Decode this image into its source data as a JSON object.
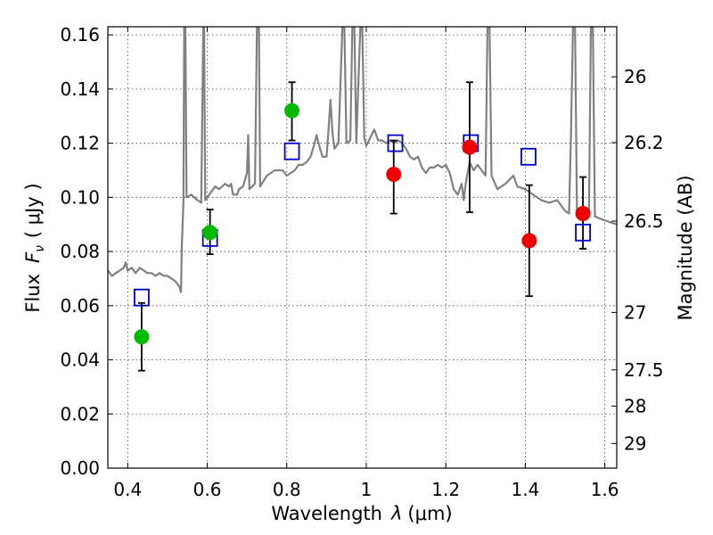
{
  "chart_data": {
    "type": "scatter",
    "xlabel_prefix": "Wavelength",
    "xlabel_symbol": "λ",
    "xlabel_unit": "(μm)",
    "ylabel_prefix": "Flux",
    "ylabel_symbol": "F",
    "ylabel_sub": "ν",
    "ylabel_unit": "( μJy )",
    "y2label": "Magnitude (AB)",
    "xlim": [
      0.35,
      1.63
    ],
    "ylim": [
      0.0,
      0.163
    ],
    "x_ticks": [
      0.4,
      0.6,
      0.8,
      1.0,
      1.2,
      1.4,
      1.6
    ],
    "x_tick_labels": [
      "0.4",
      "0.6",
      "0.8",
      "1",
      "1.2",
      "1.4",
      "1.6"
    ],
    "y_ticks": [
      0.0,
      0.02,
      0.04,
      0.06,
      0.08,
      0.1,
      0.12,
      0.14,
      0.16
    ],
    "y_tick_labels": [
      "0.00",
      "0.02",
      "0.04",
      "0.06",
      "0.08",
      "0.10",
      "0.12",
      "0.14",
      "0.16"
    ],
    "y2_ticks": [
      {
        "label": "26",
        "flux": 0.1445
      },
      {
        "label": "26.2",
        "flux": 0.1202
      },
      {
        "label": "26.5",
        "flux": 0.0912
      },
      {
        "label": "27",
        "flux": 0.0575
      },
      {
        "label": "27.5",
        "flux": 0.0363
      },
      {
        "label": "28",
        "flux": 0.0229
      },
      {
        "label": "29",
        "flux": 0.0091
      }
    ],
    "colors": {
      "spectrum": "#808080",
      "model": "#0000cc",
      "green": "#00bb00",
      "red": "#ee0000",
      "errorbar": "#000000"
    },
    "spectrum": [
      [
        0.35,
        0.073
      ],
      [
        0.36,
        0.071
      ],
      [
        0.37,
        0.072
      ],
      [
        0.38,
        0.073
      ],
      [
        0.39,
        0.074
      ],
      [
        0.395,
        0.076
      ],
      [
        0.4,
        0.073
      ],
      [
        0.41,
        0.074
      ],
      [
        0.42,
        0.072
      ],
      [
        0.43,
        0.074
      ],
      [
        0.44,
        0.073
      ],
      [
        0.45,
        0.072
      ],
      [
        0.46,
        0.072
      ],
      [
        0.47,
        0.071
      ],
      [
        0.48,
        0.072
      ],
      [
        0.49,
        0.071
      ],
      [
        0.5,
        0.071
      ],
      [
        0.51,
        0.07
      ],
      [
        0.52,
        0.069
      ],
      [
        0.525,
        0.068
      ],
      [
        0.53,
        0.067
      ],
      [
        0.534,
        0.065
      ],
      [
        0.536,
        0.082
      ],
      [
        0.54,
        0.098
      ],
      [
        0.542,
        0.163
      ],
      [
        0.545,
        0.163
      ],
      [
        0.548,
        0.1
      ],
      [
        0.56,
        0.101
      ],
      [
        0.575,
        0.099
      ],
      [
        0.585,
        0.098
      ],
      [
        0.59,
        0.163
      ],
      [
        0.592,
        0.163
      ],
      [
        0.595,
        0.099
      ],
      [
        0.61,
        0.102
      ],
      [
        0.62,
        0.104
      ],
      [
        0.63,
        0.103
      ],
      [
        0.645,
        0.105
      ],
      [
        0.655,
        0.104
      ],
      [
        0.66,
        0.105
      ],
      [
        0.665,
        0.101
      ],
      [
        0.675,
        0.101
      ],
      [
        0.68,
        0.103
      ],
      [
        0.69,
        0.104
      ],
      [
        0.7,
        0.109
      ],
      [
        0.703,
        0.123
      ],
      [
        0.706,
        0.103
      ],
      [
        0.72,
        0.105
      ],
      [
        0.725,
        0.163
      ],
      [
        0.73,
        0.163
      ],
      [
        0.733,
        0.104
      ],
      [
        0.75,
        0.108
      ],
      [
        0.77,
        0.11
      ],
      [
        0.79,
        0.11
      ],
      [
        0.8,
        0.108
      ],
      [
        0.81,
        0.109
      ],
      [
        0.82,
        0.11
      ],
      [
        0.83,
        0.112
      ],
      [
        0.84,
        0.112
      ],
      [
        0.85,
        0.113
      ],
      [
        0.86,
        0.115
      ],
      [
        0.87,
        0.12
      ],
      [
        0.875,
        0.123
      ],
      [
        0.88,
        0.12
      ],
      [
        0.89,
        0.115
      ],
      [
        0.9,
        0.115
      ],
      [
        0.905,
        0.125
      ],
      [
        0.91,
        0.136
      ],
      [
        0.915,
        0.124
      ],
      [
        0.92,
        0.118
      ],
      [
        0.93,
        0.12
      ],
      [
        0.94,
        0.163
      ],
      [
        0.945,
        0.163
      ],
      [
        0.95,
        0.12
      ],
      [
        0.96,
        0.121
      ],
      [
        0.965,
        0.163
      ],
      [
        0.97,
        0.163
      ],
      [
        0.975,
        0.12
      ],
      [
        0.985,
        0.163
      ],
      [
        0.99,
        0.163
      ],
      [
        0.995,
        0.122
      ],
      [
        1.0,
        0.119
      ],
      [
        1.01,
        0.122
      ],
      [
        1.02,
        0.125
      ],
      [
        1.03,
        0.121
      ],
      [
        1.04,
        0.121
      ],
      [
        1.05,
        0.12
      ],
      [
        1.06,
        0.121
      ],
      [
        1.07,
        0.12
      ],
      [
        1.08,
        0.121
      ],
      [
        1.09,
        0.12
      ],
      [
        1.1,
        0.118
      ],
      [
        1.11,
        0.115
      ],
      [
        1.12,
        0.114
      ],
      [
        1.13,
        0.115
      ],
      [
        1.14,
        0.111
      ],
      [
        1.15,
        0.109
      ],
      [
        1.16,
        0.111
      ],
      [
        1.17,
        0.111
      ],
      [
        1.18,
        0.112
      ],
      [
        1.19,
        0.111
      ],
      [
        1.2,
        0.112
      ],
      [
        1.21,
        0.109
      ],
      [
        1.22,
        0.103
      ],
      [
        1.23,
        0.101
      ],
      [
        1.24,
        0.105
      ],
      [
        1.245,
        0.099
      ],
      [
        1.25,
        0.105
      ],
      [
        1.26,
        0.113
      ],
      [
        1.27,
        0.11
      ],
      [
        1.28,
        0.112
      ],
      [
        1.29,
        0.11
      ],
      [
        1.3,
        0.108
      ],
      [
        1.305,
        0.163
      ],
      [
        1.31,
        0.163
      ],
      [
        1.315,
        0.108
      ],
      [
        1.33,
        0.103
      ],
      [
        1.35,
        0.105
      ],
      [
        1.37,
        0.108
      ],
      [
        1.38,
        0.104
      ],
      [
        1.4,
        0.103
      ],
      [
        1.42,
        0.101
      ],
      [
        1.44,
        0.099
      ],
      [
        1.46,
        0.098
      ],
      [
        1.48,
        0.099
      ],
      [
        1.49,
        0.097
      ],
      [
        1.5,
        0.095
      ],
      [
        1.51,
        0.094
      ],
      [
        1.515,
        0.124
      ],
      [
        1.52,
        0.163
      ],
      [
        1.525,
        0.163
      ],
      [
        1.53,
        0.093
      ],
      [
        1.54,
        0.093
      ],
      [
        1.55,
        0.093
      ],
      [
        1.56,
        0.093
      ],
      [
        1.565,
        0.163
      ],
      [
        1.57,
        0.163
      ],
      [
        1.575,
        0.093
      ],
      [
        1.59,
        0.092
      ],
      [
        1.61,
        0.091
      ],
      [
        1.63,
        0.09
      ]
    ],
    "model_points": [
      {
        "x": 0.435,
        "y": 0.063
      },
      {
        "x": 0.607,
        "y": 0.085
      },
      {
        "x": 0.813,
        "y": 0.117
      },
      {
        "x": 1.073,
        "y": 0.12
      },
      {
        "x": 1.263,
        "y": 0.12
      },
      {
        "x": 1.408,
        "y": 0.115
      },
      {
        "x": 1.545,
        "y": 0.087
      }
    ],
    "green_points": [
      {
        "x": 0.435,
        "y": 0.0485,
        "err_low": 0.0125,
        "err_high": 0.0125
      },
      {
        "x": 0.607,
        "y": 0.087,
        "err_low": 0.008,
        "err_high": 0.0085
      },
      {
        "x": 0.813,
        "y": 0.132,
        "err_low": 0.011,
        "err_high": 0.0105
      }
    ],
    "red_points": [
      {
        "x": 1.069,
        "y": 0.1085,
        "err_low": 0.0145,
        "err_high": 0.0125
      },
      {
        "x": 1.26,
        "y": 0.1185,
        "err_low": 0.024,
        "err_high": 0.024
      },
      {
        "x": 1.41,
        "y": 0.084,
        "err_low": 0.0205,
        "err_high": 0.0205
      },
      {
        "x": 1.545,
        "y": 0.094,
        "err_low": 0.013,
        "err_high": 0.0135
      }
    ]
  }
}
